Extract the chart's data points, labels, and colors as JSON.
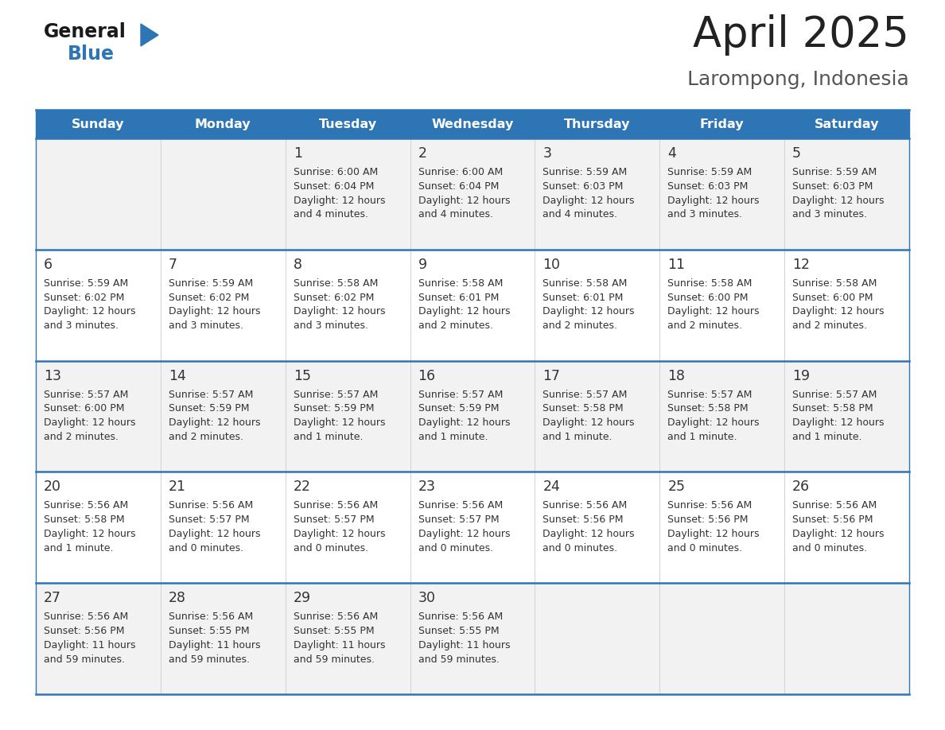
{
  "title": "April 2025",
  "subtitle": "Larompong, Indonesia",
  "days_of_week": [
    "Sunday",
    "Monday",
    "Tuesday",
    "Wednesday",
    "Thursday",
    "Friday",
    "Saturday"
  ],
  "header_bg": "#2E75B6",
  "header_text": "#FFFFFF",
  "row_bg_light": "#F2F2F2",
  "row_bg_white": "#FFFFFF",
  "cell_border_color": "#2E75B6",
  "cell_divider_color": "#CCCCCC",
  "day_num_color": "#333333",
  "text_color": "#333333",
  "title_color": "#222222",
  "subtitle_color": "#555555",
  "logo_general_color": "#1A1A1A",
  "logo_blue_color": "#2E75B6",
  "calendar_data": [
    [
      {
        "day": null,
        "sunrise": null,
        "sunset": null,
        "daylight_line1": null,
        "daylight_line2": null
      },
      {
        "day": null,
        "sunrise": null,
        "sunset": null,
        "daylight_line1": null,
        "daylight_line2": null
      },
      {
        "day": 1,
        "sunrise": "6:00 AM",
        "sunset": "6:04 PM",
        "daylight_line1": "12 hours",
        "daylight_line2": "and 4 minutes."
      },
      {
        "day": 2,
        "sunrise": "6:00 AM",
        "sunset": "6:04 PM",
        "daylight_line1": "12 hours",
        "daylight_line2": "and 4 minutes."
      },
      {
        "day": 3,
        "sunrise": "5:59 AM",
        "sunset": "6:03 PM",
        "daylight_line1": "12 hours",
        "daylight_line2": "and 4 minutes."
      },
      {
        "day": 4,
        "sunrise": "5:59 AM",
        "sunset": "6:03 PM",
        "daylight_line1": "12 hours",
        "daylight_line2": "and 3 minutes."
      },
      {
        "day": 5,
        "sunrise": "5:59 AM",
        "sunset": "6:03 PM",
        "daylight_line1": "12 hours",
        "daylight_line2": "and 3 minutes."
      }
    ],
    [
      {
        "day": 6,
        "sunrise": "5:59 AM",
        "sunset": "6:02 PM",
        "daylight_line1": "12 hours",
        "daylight_line2": "and 3 minutes."
      },
      {
        "day": 7,
        "sunrise": "5:59 AM",
        "sunset": "6:02 PM",
        "daylight_line1": "12 hours",
        "daylight_line2": "and 3 minutes."
      },
      {
        "day": 8,
        "sunrise": "5:58 AM",
        "sunset": "6:02 PM",
        "daylight_line1": "12 hours",
        "daylight_line2": "and 3 minutes."
      },
      {
        "day": 9,
        "sunrise": "5:58 AM",
        "sunset": "6:01 PM",
        "daylight_line1": "12 hours",
        "daylight_line2": "and 2 minutes."
      },
      {
        "day": 10,
        "sunrise": "5:58 AM",
        "sunset": "6:01 PM",
        "daylight_line1": "12 hours",
        "daylight_line2": "and 2 minutes."
      },
      {
        "day": 11,
        "sunrise": "5:58 AM",
        "sunset": "6:00 PM",
        "daylight_line1": "12 hours",
        "daylight_line2": "and 2 minutes."
      },
      {
        "day": 12,
        "sunrise": "5:58 AM",
        "sunset": "6:00 PM",
        "daylight_line1": "12 hours",
        "daylight_line2": "and 2 minutes."
      }
    ],
    [
      {
        "day": 13,
        "sunrise": "5:57 AM",
        "sunset": "6:00 PM",
        "daylight_line1": "12 hours",
        "daylight_line2": "and 2 minutes."
      },
      {
        "day": 14,
        "sunrise": "5:57 AM",
        "sunset": "5:59 PM",
        "daylight_line1": "12 hours",
        "daylight_line2": "and 2 minutes."
      },
      {
        "day": 15,
        "sunrise": "5:57 AM",
        "sunset": "5:59 PM",
        "daylight_line1": "12 hours",
        "daylight_line2": "and 1 minute."
      },
      {
        "day": 16,
        "sunrise": "5:57 AM",
        "sunset": "5:59 PM",
        "daylight_line1": "12 hours",
        "daylight_line2": "and 1 minute."
      },
      {
        "day": 17,
        "sunrise": "5:57 AM",
        "sunset": "5:58 PM",
        "daylight_line1": "12 hours",
        "daylight_line2": "and 1 minute."
      },
      {
        "day": 18,
        "sunrise": "5:57 AM",
        "sunset": "5:58 PM",
        "daylight_line1": "12 hours",
        "daylight_line2": "and 1 minute."
      },
      {
        "day": 19,
        "sunrise": "5:57 AM",
        "sunset": "5:58 PM",
        "daylight_line1": "12 hours",
        "daylight_line2": "and 1 minute."
      }
    ],
    [
      {
        "day": 20,
        "sunrise": "5:56 AM",
        "sunset": "5:58 PM",
        "daylight_line1": "12 hours",
        "daylight_line2": "and 1 minute."
      },
      {
        "day": 21,
        "sunrise": "5:56 AM",
        "sunset": "5:57 PM",
        "daylight_line1": "12 hours",
        "daylight_line2": "and 0 minutes."
      },
      {
        "day": 22,
        "sunrise": "5:56 AM",
        "sunset": "5:57 PM",
        "daylight_line1": "12 hours",
        "daylight_line2": "and 0 minutes."
      },
      {
        "day": 23,
        "sunrise": "5:56 AM",
        "sunset": "5:57 PM",
        "daylight_line1": "12 hours",
        "daylight_line2": "and 0 minutes."
      },
      {
        "day": 24,
        "sunrise": "5:56 AM",
        "sunset": "5:56 PM",
        "daylight_line1": "12 hours",
        "daylight_line2": "and 0 minutes."
      },
      {
        "day": 25,
        "sunrise": "5:56 AM",
        "sunset": "5:56 PM",
        "daylight_line1": "12 hours",
        "daylight_line2": "and 0 minutes."
      },
      {
        "day": 26,
        "sunrise": "5:56 AM",
        "sunset": "5:56 PM",
        "daylight_line1": "12 hours",
        "daylight_line2": "and 0 minutes."
      }
    ],
    [
      {
        "day": 27,
        "sunrise": "5:56 AM",
        "sunset": "5:56 PM",
        "daylight_line1": "11 hours",
        "daylight_line2": "and 59 minutes."
      },
      {
        "day": 28,
        "sunrise": "5:56 AM",
        "sunset": "5:55 PM",
        "daylight_line1": "11 hours",
        "daylight_line2": "and 59 minutes."
      },
      {
        "day": 29,
        "sunrise": "5:56 AM",
        "sunset": "5:55 PM",
        "daylight_line1": "11 hours",
        "daylight_line2": "and 59 minutes."
      },
      {
        "day": 30,
        "sunrise": "5:56 AM",
        "sunset": "5:55 PM",
        "daylight_line1": "11 hours",
        "daylight_line2": "and 59 minutes."
      },
      {
        "day": null,
        "sunrise": null,
        "sunset": null,
        "daylight_line1": null,
        "daylight_line2": null
      },
      {
        "day": null,
        "sunrise": null,
        "sunset": null,
        "daylight_line1": null,
        "daylight_line2": null
      },
      {
        "day": null,
        "sunrise": null,
        "sunset": null,
        "daylight_line1": null,
        "daylight_line2": null
      }
    ]
  ]
}
